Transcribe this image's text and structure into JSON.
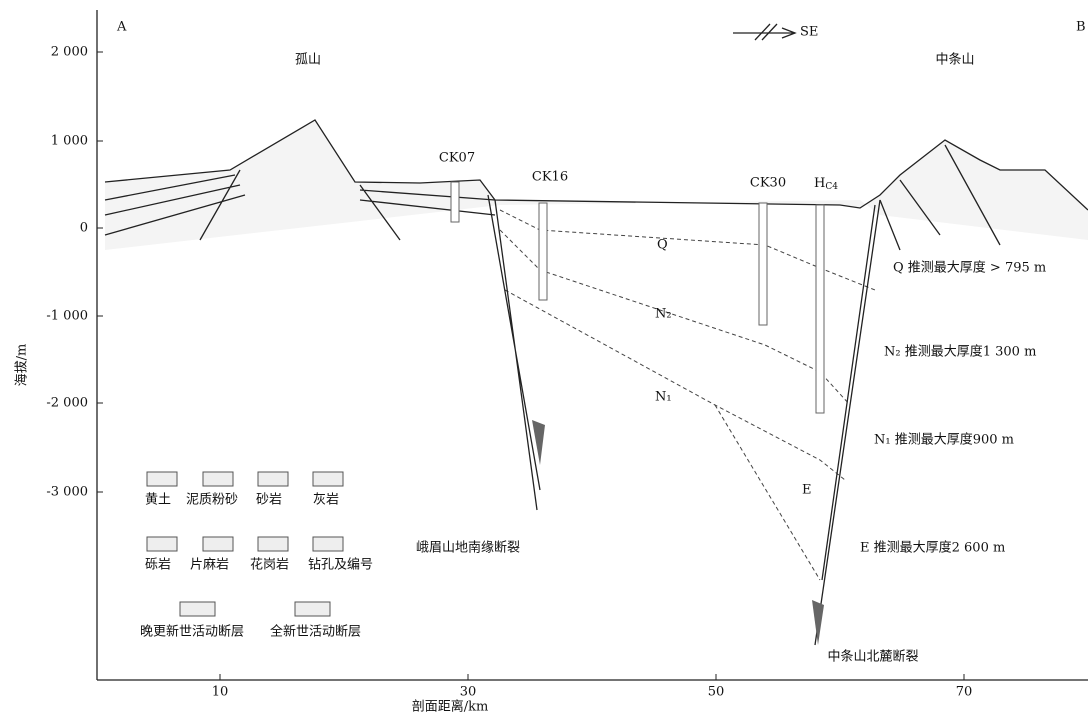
{
  "corner_labels": {
    "left": "A",
    "right": "B"
  },
  "direction": "SE",
  "y_axis": {
    "label": "海拔/m",
    "ticks": [
      "2 000",
      "1 000",
      "0",
      "-1 000",
      "-2 000",
      "-3 000"
    ]
  },
  "x_axis": {
    "label": "剖面距离/km",
    "ticks": [
      "10",
      "30",
      "50",
      "70"
    ]
  },
  "mountains": [
    "孤山",
    "中条山"
  ],
  "boreholes": [
    {
      "label": "CK07"
    },
    {
      "label": "CK16"
    },
    {
      "label": "CK30"
    },
    {
      "label": "H",
      "sub": "C4"
    }
  ],
  "strata": [
    "Q",
    "N₂",
    "N₁",
    "E"
  ],
  "notes": [
    "Q 推测最大厚度 > 795 m",
    "N₂ 推测最大厚度1 300 m",
    "N₁ 推测最大厚度900 m",
    "E 推测最大厚度2 600 m"
  ],
  "faults": [
    "峨眉山地南缘断裂",
    "中条山北麓断裂"
  ],
  "legend": [
    "黄土",
    "泥质粉砂",
    "砂岩",
    "灰岩",
    "砾岩",
    "片麻岩",
    "花岗岩",
    "钻孔及编号",
    "晚更新世活动断层",
    "全新世活动断层"
  ]
}
